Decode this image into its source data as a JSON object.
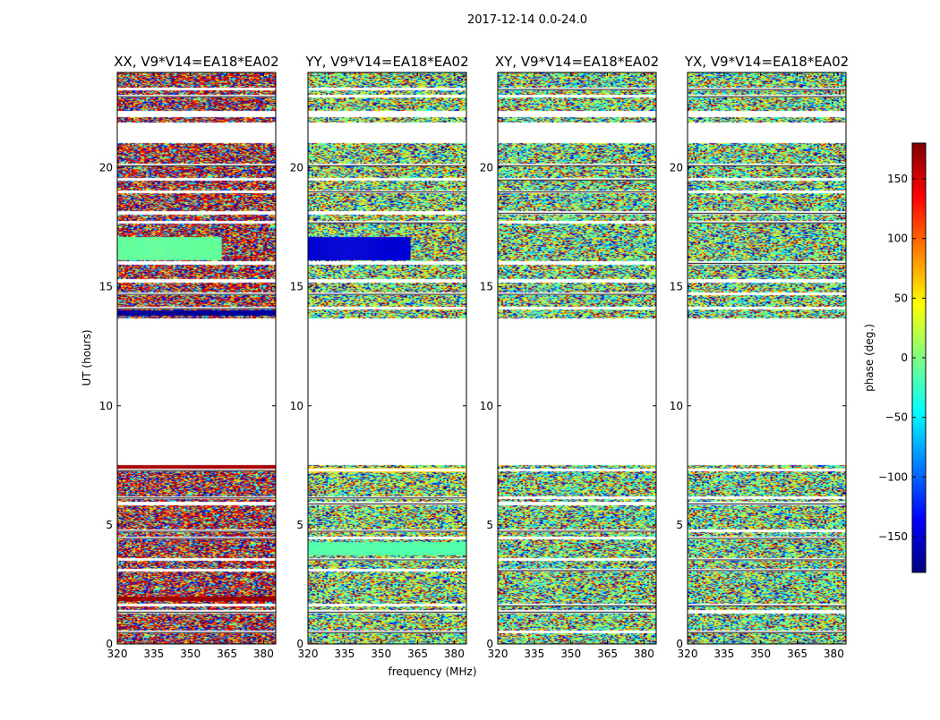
{
  "figure": {
    "suptitle": "2017-12-14 0.0-24.0"
  },
  "chart_data": {
    "type": "heatmap",
    "xlabel": "frequency (MHz)",
    "ylabel": "UT (hours)",
    "xlim": [
      320,
      385
    ],
    "ylim": [
      0,
      24
    ],
    "x_ticks": [
      320,
      335,
      350,
      365,
      380
    ],
    "y_ticks": [
      0,
      5,
      10,
      15,
      20
    ],
    "colorbar": {
      "label": "phase (deg.)",
      "range": [
        -180,
        180
      ],
      "ticks": [
        -150,
        -100,
        -50,
        0,
        50,
        100,
        150
      ],
      "colormap": "jet",
      "colors": [
        "#00007f",
        "#0000ff",
        "#007fff",
        "#00ffff",
        "#7fff7f",
        "#ffff00",
        "#ff7f00",
        "#ff0000",
        "#7f0000"
      ]
    },
    "data_time_ranges": [
      [
        0.0,
        7.5
      ],
      [
        13.7,
        21.0
      ],
      [
        21.9,
        22.1
      ],
      [
        22.4,
        24.0
      ]
    ],
    "gap_rows": [
      0.5,
      1.35,
      1.62,
      3.1,
      3.55,
      4.45,
      4.75,
      5.9,
      6.15,
      7.3,
      14.1,
      14.7,
      15.25,
      16.0,
      17.7,
      18.1,
      19.0,
      19.5,
      20.1,
      23.0,
      23.3
    ],
    "panels": [
      {
        "title": "XX, V9*V14=EA18*EA02",
        "mean_phase": 150,
        "coherent": [
          {
            "t0": 16.1,
            "t1": 17.1,
            "phase": -10,
            "f1": 363
          },
          {
            "t0": 13.8,
            "t1": 14.0,
            "phase": -170
          },
          {
            "t0": 1.8,
            "t1": 2.0,
            "phase": 170
          },
          {
            "t0": 7.3,
            "t1": 7.5,
            "phase": 165
          }
        ]
      },
      {
        "title": "YY, V9*V14=EA18*EA02",
        "mean_phase": 10,
        "coherent": [
          {
            "t0": 16.1,
            "t1": 17.1,
            "phase": -150,
            "f1": 362
          },
          {
            "t0": 3.7,
            "t1": 4.3,
            "phase": -15
          },
          {
            "t0": 7.2,
            "t1": 7.4,
            "phase": 60
          }
        ]
      },
      {
        "title": "XY, V9*V14=EA18*EA02",
        "mean_phase": 0,
        "coherent": []
      },
      {
        "title": "YX, V9*V14=EA18*EA02",
        "mean_phase": 0,
        "coherent": []
      }
    ]
  }
}
